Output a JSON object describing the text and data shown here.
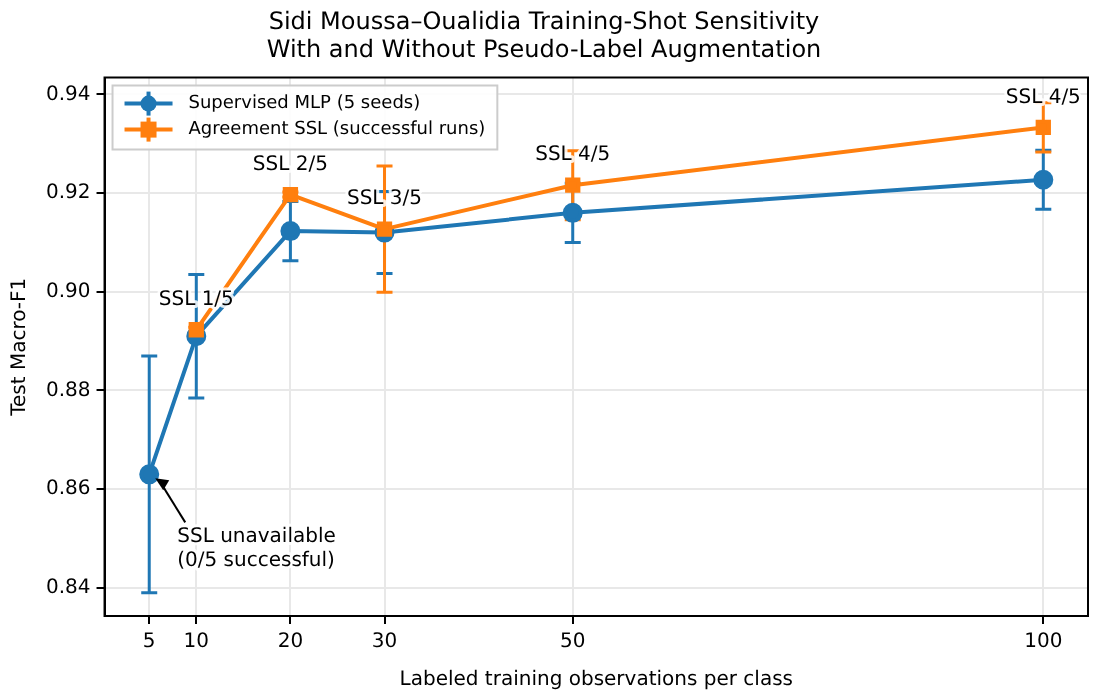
{
  "chart_data": {
    "type": "line",
    "title": "Sidi Moussa–Oualidia Training-Shot Sensitivity\nWith and Without Pseudo-Label Augmentation",
    "xlabel": "Labeled training observations per class",
    "ylabel": "Test Macro-F1",
    "x": [
      5,
      10,
      20,
      30,
      50,
      100
    ],
    "series": [
      {
        "name": "Supervised MLP (5 seeds)",
        "color": "#1f77b4",
        "marker": "circle",
        "values": [
          0.863,
          0.891,
          0.9123,
          0.912,
          0.916,
          0.9227
        ],
        "errors": [
          0.024,
          0.0125,
          0.006,
          0.0083,
          0.006,
          0.006
        ]
      },
      {
        "name": "Agreement SSL (successful runs)",
        "color": "#ff7f0e",
        "marker": "square",
        "values": [
          null,
          0.8923,
          0.9197,
          0.9127,
          0.9216,
          0.9333
        ],
        "errors": [
          null,
          0.0005,
          0.0005,
          0.0128,
          0.007,
          0.005
        ]
      }
    ],
    "annotations": [
      {
        "text": "SSL 1/5",
        "x": 10,
        "y": 0.8923
      },
      {
        "text": "SSL 2/5",
        "x": 20,
        "y": 0.9197
      },
      {
        "text": "SSL 3/5",
        "x": 30,
        "y": 0.9127
      },
      {
        "text": "SSL 4/5",
        "x": 50,
        "y": 0.9216
      },
      {
        "text": "SSL 4/5",
        "x": 100,
        "y": 0.9333
      },
      {
        "text": "SSL unavailable\n(0/5 successful)",
        "x": 5,
        "y": 0.863
      }
    ],
    "xlim": [
      0.25,
      104.75
    ],
    "xticks": [
      5,
      10,
      20,
      30,
      50,
      100
    ],
    "ylim": [
      0.8343,
      0.9434
    ],
    "yticks": [
      {
        "value": 0.84,
        "label": "0.84"
      },
      {
        "value": 0.86,
        "label": "0.86"
      },
      {
        "value": 0.88,
        "label": "0.88"
      },
      {
        "value": 0.9,
        "label": "0.90"
      },
      {
        "value": 0.92,
        "label": "0.92"
      },
      {
        "value": 0.94,
        "label": "0.94"
      }
    ],
    "grid": true,
    "legend": "top left",
    "line_style": "solid"
  }
}
